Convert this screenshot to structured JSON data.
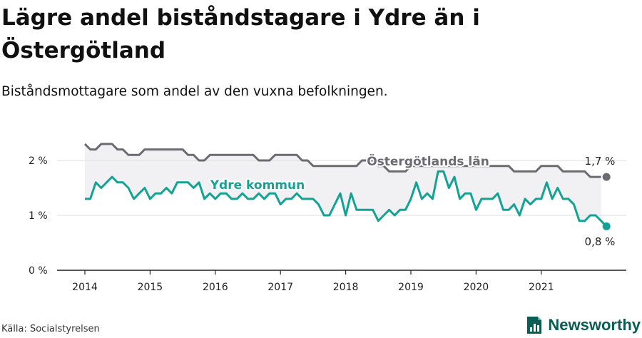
{
  "header": {
    "title": "Lägre andel biståndstagare i Ydre än i Östergötland",
    "subtitle": "Biståndsmottagare som andel av den vuxna befolkningen."
  },
  "footer": {
    "source": "Källa: Socialstyrelsen",
    "brand": "Newsworthy"
  },
  "colors": {
    "lan": "#6b6b72",
    "kommun": "#13a394",
    "band": "#f1f1f3",
    "grid": "#dddddd",
    "brand": "#0a5d52"
  },
  "icons": {
    "brand_logo": "bar-chart-document-icon"
  },
  "chart_data": {
    "type": "line",
    "y_ticks": [
      "0 %",
      "1 %",
      "2 %"
    ],
    "x_ticks": [
      "2014",
      "2015",
      "2016",
      "2017",
      "2018",
      "2019",
      "2020",
      "2021"
    ],
    "ylim": [
      0,
      2.35
    ],
    "xlim": [
      2013.6,
      2022.3
    ],
    "grid": true,
    "series": [
      {
        "name": "Östergötlands län",
        "end_label": "1,7 %",
        "points": [
          [
            2014.0,
            2.3
          ],
          [
            2014.083,
            2.2
          ],
          [
            2014.167,
            2.2
          ],
          [
            2014.25,
            2.3
          ],
          [
            2014.333,
            2.3
          ],
          [
            2014.417,
            2.3
          ],
          [
            2014.5,
            2.2
          ],
          [
            2014.583,
            2.2
          ],
          [
            2014.667,
            2.1
          ],
          [
            2014.75,
            2.1
          ],
          [
            2014.833,
            2.1
          ],
          [
            2014.917,
            2.2
          ],
          [
            2015.0,
            2.2
          ],
          [
            2015.083,
            2.2
          ],
          [
            2015.167,
            2.2
          ],
          [
            2015.25,
            2.2
          ],
          [
            2015.333,
            2.2
          ],
          [
            2015.417,
            2.2
          ],
          [
            2015.5,
            2.2
          ],
          [
            2015.583,
            2.1
          ],
          [
            2015.667,
            2.1
          ],
          [
            2015.75,
            2.0
          ],
          [
            2015.833,
            2.0
          ],
          [
            2015.917,
            2.1
          ],
          [
            2016.0,
            2.1
          ],
          [
            2016.083,
            2.1
          ],
          [
            2016.167,
            2.1
          ],
          [
            2016.25,
            2.1
          ],
          [
            2016.333,
            2.1
          ],
          [
            2016.417,
            2.1
          ],
          [
            2016.5,
            2.1
          ],
          [
            2016.583,
            2.1
          ],
          [
            2016.667,
            2.0
          ],
          [
            2016.75,
            2.0
          ],
          [
            2016.833,
            2.0
          ],
          [
            2016.917,
            2.1
          ],
          [
            2017.0,
            2.1
          ],
          [
            2017.083,
            2.1
          ],
          [
            2017.167,
            2.1
          ],
          [
            2017.25,
            2.1
          ],
          [
            2017.333,
            2.0
          ],
          [
            2017.417,
            2.0
          ],
          [
            2017.5,
            1.9
          ],
          [
            2017.583,
            1.9
          ],
          [
            2017.667,
            1.9
          ],
          [
            2017.75,
            1.9
          ],
          [
            2017.833,
            1.9
          ],
          [
            2017.917,
            1.9
          ],
          [
            2018.0,
            1.9
          ],
          [
            2018.083,
            1.9
          ],
          [
            2018.167,
            1.9
          ],
          [
            2018.25,
            2.0
          ],
          [
            2018.333,
            2.0
          ],
          [
            2018.417,
            2.0
          ],
          [
            2018.5,
            1.9
          ],
          [
            2018.583,
            1.9
          ],
          [
            2018.667,
            1.8
          ],
          [
            2018.75,
            1.8
          ],
          [
            2018.833,
            1.8
          ],
          [
            2018.917,
            1.8
          ],
          [
            2019.0,
            1.9
          ],
          [
            2019.083,
            1.9
          ],
          [
            2019.167,
            1.9
          ],
          [
            2019.25,
            1.9
          ],
          [
            2019.333,
            1.9
          ],
          [
            2019.417,
            1.9
          ],
          [
            2019.5,
            1.9
          ],
          [
            2019.583,
            1.9
          ],
          [
            2019.667,
            1.9
          ],
          [
            2019.75,
            1.9
          ],
          [
            2019.833,
            1.9
          ],
          [
            2019.917,
            1.9
          ],
          [
            2020.0,
            1.9
          ],
          [
            2020.083,
            1.9
          ],
          [
            2020.167,
            1.9
          ],
          [
            2020.25,
            1.9
          ],
          [
            2020.333,
            1.9
          ],
          [
            2020.417,
            1.9
          ],
          [
            2020.5,
            1.9
          ],
          [
            2020.583,
            1.8
          ],
          [
            2020.667,
            1.8
          ],
          [
            2020.75,
            1.8
          ],
          [
            2020.833,
            1.8
          ],
          [
            2020.917,
            1.8
          ],
          [
            2021.0,
            1.9
          ],
          [
            2021.083,
            1.9
          ],
          [
            2021.167,
            1.9
          ],
          [
            2021.25,
            1.9
          ],
          [
            2021.333,
            1.8
          ],
          [
            2021.417,
            1.8
          ],
          [
            2021.5,
            1.8
          ],
          [
            2021.583,
            1.8
          ],
          [
            2021.667,
            1.8
          ],
          [
            2021.75,
            1.7
          ],
          [
            2021.833,
            1.7
          ],
          [
            2021.917,
            1.7
          ]
        ]
      },
      {
        "name": "Ydre kommun",
        "end_label": "0,8 %",
        "points": [
          [
            2014.0,
            1.3
          ],
          [
            2014.083,
            1.3
          ],
          [
            2014.167,
            1.6
          ],
          [
            2014.25,
            1.5
          ],
          [
            2014.333,
            1.6
          ],
          [
            2014.417,
            1.7
          ],
          [
            2014.5,
            1.6
          ],
          [
            2014.583,
            1.6
          ],
          [
            2014.667,
            1.5
          ],
          [
            2014.75,
            1.3
          ],
          [
            2014.833,
            1.4
          ],
          [
            2014.917,
            1.5
          ],
          [
            2015.0,
            1.3
          ],
          [
            2015.083,
            1.4
          ],
          [
            2015.167,
            1.4
          ],
          [
            2015.25,
            1.5
          ],
          [
            2015.333,
            1.4
          ],
          [
            2015.417,
            1.6
          ],
          [
            2015.5,
            1.6
          ],
          [
            2015.583,
            1.6
          ],
          [
            2015.667,
            1.5
          ],
          [
            2015.75,
            1.6
          ],
          [
            2015.833,
            1.3
          ],
          [
            2015.917,
            1.4
          ],
          [
            2016.0,
            1.3
          ],
          [
            2016.083,
            1.4
          ],
          [
            2016.167,
            1.4
          ],
          [
            2016.25,
            1.3
          ],
          [
            2016.333,
            1.3
          ],
          [
            2016.417,
            1.4
          ],
          [
            2016.5,
            1.3
          ],
          [
            2016.583,
            1.3
          ],
          [
            2016.667,
            1.4
          ],
          [
            2016.75,
            1.3
          ],
          [
            2016.833,
            1.4
          ],
          [
            2016.917,
            1.4
          ],
          [
            2017.0,
            1.2
          ],
          [
            2017.083,
            1.3
          ],
          [
            2017.167,
            1.3
          ],
          [
            2017.25,
            1.4
          ],
          [
            2017.333,
            1.3
          ],
          [
            2017.417,
            1.3
          ],
          [
            2017.5,
            1.3
          ],
          [
            2017.583,
            1.2
          ],
          [
            2017.667,
            1.0
          ],
          [
            2017.75,
            1.0
          ],
          [
            2017.833,
            1.2
          ],
          [
            2017.917,
            1.4
          ],
          [
            2018.0,
            1.0
          ],
          [
            2018.083,
            1.4
          ],
          [
            2018.167,
            1.1
          ],
          [
            2018.25,
            1.1
          ],
          [
            2018.333,
            1.1
          ],
          [
            2018.417,
            1.1
          ],
          [
            2018.5,
            0.9
          ],
          [
            2018.583,
            1.0
          ],
          [
            2018.667,
            1.1
          ],
          [
            2018.75,
            1.0
          ],
          [
            2018.833,
            1.1
          ],
          [
            2018.917,
            1.1
          ],
          [
            2019.0,
            1.3
          ],
          [
            2019.083,
            1.6
          ],
          [
            2019.167,
            1.3
          ],
          [
            2019.25,
            1.4
          ],
          [
            2019.333,
            1.3
          ],
          [
            2019.417,
            1.8
          ],
          [
            2019.5,
            1.8
          ],
          [
            2019.583,
            1.5
          ],
          [
            2019.667,
            1.7
          ],
          [
            2019.75,
            1.3
          ],
          [
            2019.833,
            1.4
          ],
          [
            2019.917,
            1.4
          ],
          [
            2020.0,
            1.1
          ],
          [
            2020.083,
            1.3
          ],
          [
            2020.167,
            1.3
          ],
          [
            2020.25,
            1.3
          ],
          [
            2020.333,
            1.4
          ],
          [
            2020.417,
            1.1
          ],
          [
            2020.5,
            1.1
          ],
          [
            2020.583,
            1.2
          ],
          [
            2020.667,
            1.0
          ],
          [
            2020.75,
            1.3
          ],
          [
            2020.833,
            1.2
          ],
          [
            2020.917,
            1.3
          ],
          [
            2021.0,
            1.3
          ],
          [
            2021.083,
            1.6
          ],
          [
            2021.167,
            1.3
          ],
          [
            2021.25,
            1.5
          ],
          [
            2021.333,
            1.3
          ],
          [
            2021.417,
            1.3
          ],
          [
            2021.5,
            1.2
          ],
          [
            2021.583,
            0.9
          ],
          [
            2021.667,
            0.9
          ],
          [
            2021.75,
            1.0
          ],
          [
            2021.833,
            1.0
          ],
          [
            2021.917,
            0.9
          ],
          [
            2022.0,
            0.8
          ]
        ]
      }
    ]
  }
}
